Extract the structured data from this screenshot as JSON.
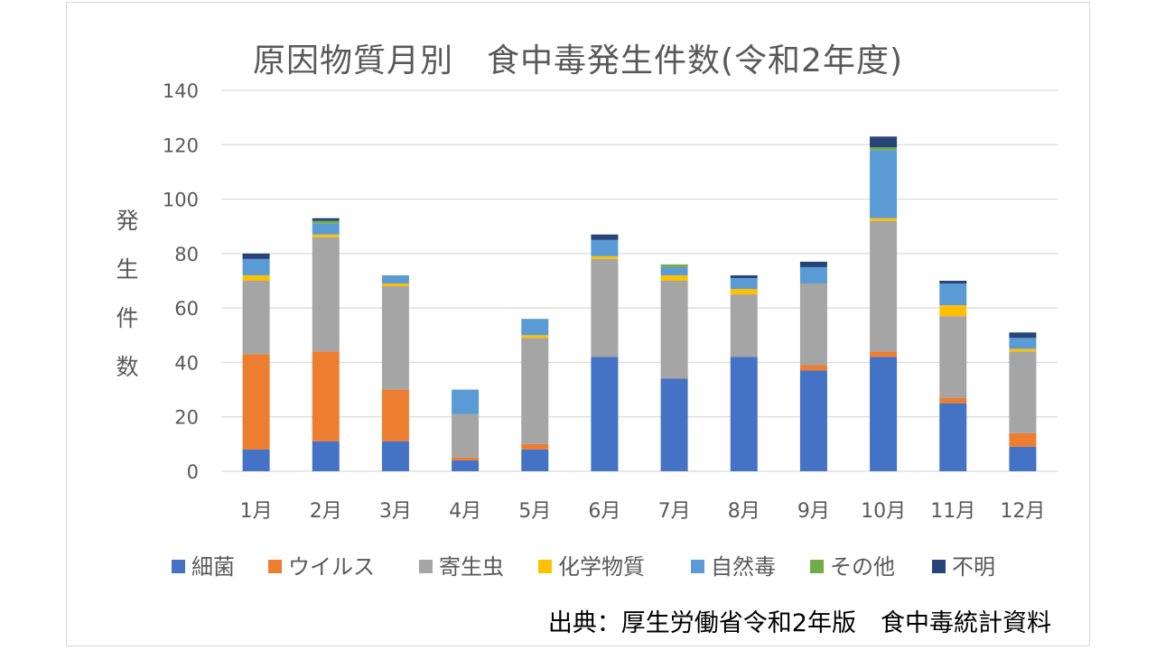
{
  "chart_data": {
    "type": "bar",
    "stacked": true,
    "title": "原因物質月別　食中毒発生件数(令和2年度)",
    "ylabel": "発生件数",
    "xlabel": "",
    "ylim": [
      0,
      140
    ],
    "yticks": [
      0,
      20,
      40,
      60,
      80,
      100,
      120,
      140
    ],
    "grid": true,
    "legend": "bottom",
    "categories": [
      "1月",
      "2月",
      "3月",
      "4月",
      "5月",
      "6月",
      "7月",
      "8月",
      "9月",
      "10月",
      "11月",
      "12月"
    ],
    "series": [
      {
        "name": "細菌",
        "color": "#4472C4",
        "values": [
          8,
          11,
          11,
          4,
          8,
          42,
          34,
          42,
          37,
          42,
          25,
          9
        ]
      },
      {
        "name": "ウイルス",
        "color": "#ED7D31",
        "values": [
          35,
          33,
          19,
          1,
          2,
          0,
          0,
          0,
          2,
          2,
          2,
          5
        ]
      },
      {
        "name": "寄生虫",
        "color": "#A5A5A5",
        "values": [
          27,
          42,
          38,
          16,
          39,
          36,
          36,
          23,
          30,
          48,
          30,
          30
        ]
      },
      {
        "name": "化学物質",
        "color": "#FFC000",
        "values": [
          2,
          1,
          1,
          0,
          1,
          1,
          2,
          2,
          0,
          1,
          4,
          1
        ]
      },
      {
        "name": "自然毒",
        "color": "#5B9BD5",
        "values": [
          6,
          4,
          3,
          9,
          6,
          6,
          3,
          4,
          6,
          25,
          8,
          4
        ]
      },
      {
        "name": "その他",
        "color": "#70AD47",
        "values": [
          0,
          1,
          0,
          0,
          0,
          0,
          1,
          0,
          0,
          1,
          0,
          0
        ]
      },
      {
        "name": "不明",
        "color": "#264478",
        "values": [
          2,
          1,
          0,
          0,
          0,
          2,
          0,
          1,
          2,
          4,
          1,
          2
        ]
      }
    ]
  },
  "source_note": "出典：厚生労働省令和2年版　食中毒統計資料"
}
